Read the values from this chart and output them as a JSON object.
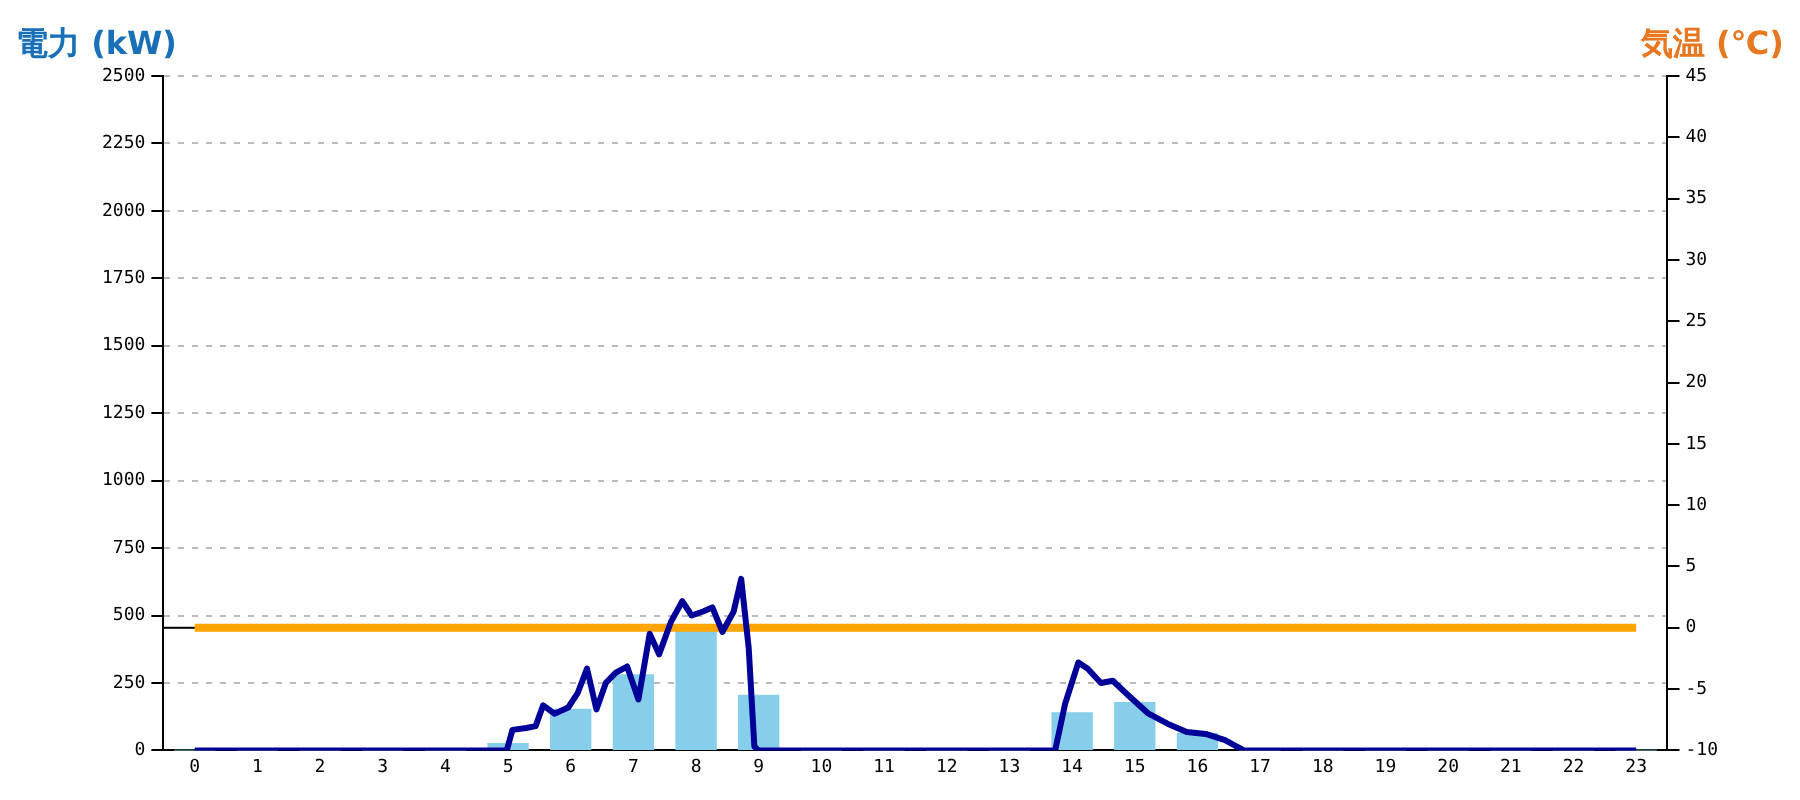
{
  "chart_data": {
    "type": "bar",
    "ylabel": "電力 (kW)",
    "y2label": "気温 (℃)",
    "x": [
      0,
      1,
      2,
      3,
      4,
      5,
      6,
      7,
      8,
      9,
      10,
      11,
      12,
      13,
      14,
      15,
      16,
      17,
      18,
      19,
      20,
      21,
      22,
      23
    ],
    "xlim": [
      -0.5,
      23.5
    ],
    "xticks": [
      0,
      1,
      2,
      3,
      4,
      5,
      6,
      7,
      8,
      9,
      10,
      11,
      12,
      13,
      14,
      15,
      16,
      17,
      18,
      19,
      20,
      21,
      22,
      23
    ],
    "series": [
      {
        "color": "#87ceeb",
        "values": [
          0,
          0,
          0,
          0,
          0,
          25,
          152,
          280,
          442,
          204,
          0,
          0,
          0,
          0,
          139,
          177,
          63,
          0,
          0,
          0,
          0,
          0,
          0,
          0
        ]
      },
      {
        "type": "line",
        "color": "#000099",
        "x": [
          0,
          4.83,
          4.98,
          5.07,
          5.29,
          5.44,
          5.56,
          5.74,
          5.96,
          6.11,
          6.26,
          6.41,
          6.56,
          6.72,
          6.9,
          7.08,
          7.26,
          7.41,
          7.6,
          7.78,
          7.93,
          8.11,
          8.26,
          8.42,
          8.6,
          8.72,
          8.84,
          8.93,
          8.99,
          13.73,
          13.89,
          14.1,
          14.25,
          14.46,
          14.65,
          14.86,
          15.22,
          15.53,
          15.83,
          16.13,
          16.44,
          16.74,
          23
        ],
        "values": [
          0,
          0,
          0,
          76,
          83,
          90,
          167,
          136,
          159,
          212,
          303,
          152,
          250,
          288,
          311,
          189,
          432,
          356,
          477,
          553,
          500,
          515,
          530,
          439,
          515,
          636,
          379,
          15,
          0,
          0,
          174,
          326,
          303,
          250,
          258,
          212,
          136,
          98,
          68,
          61,
          38,
          0,
          0
        ]
      },
      {
        "type": "line",
        "axis": "y2",
        "color": "#ffa500",
        "values": [
          0,
          0,
          0,
          0,
          0,
          0,
          0,
          0,
          0,
          0,
          0,
          0,
          0,
          0,
          0,
          0,
          0,
          0,
          0,
          0,
          0,
          0,
          0,
          0
        ]
      }
    ],
    "ylim": [
      0,
      2500
    ],
    "yticks": [
      0,
      250,
      500,
      750,
      1000,
      1250,
      1500,
      1750,
      2000,
      2250,
      2500
    ],
    "y2lim": [
      -10,
      45
    ],
    "y2ticks": [
      -10,
      -5,
      0,
      5,
      10,
      15,
      20,
      25,
      30,
      35,
      40,
      45
    ],
    "grid": "y",
    "legend": false,
    "marker": "none",
    "line_style": "solid"
  }
}
